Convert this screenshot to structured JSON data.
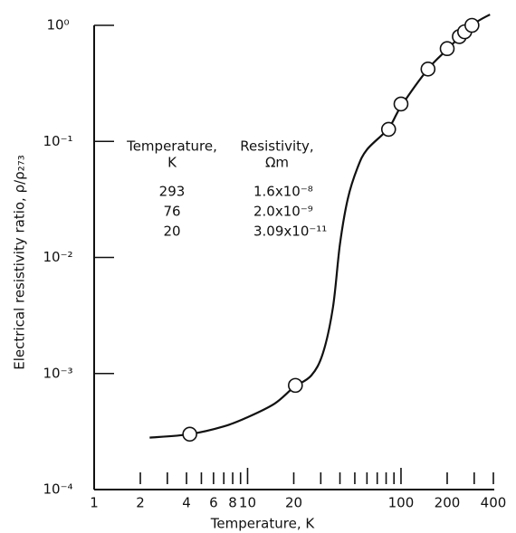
{
  "chart_data": {
    "type": "scatter",
    "x_label": "Temperature, K",
    "y_label": "Electrical resistivity ratio, ρ/ρ₂₇₃",
    "x_scale": "log",
    "y_scale": "log",
    "xlim": [
      1,
      400
    ],
    "ylim": [
      0.0001,
      1
    ],
    "xticks": [
      1,
      2,
      {
        "value": 3,
        "label": null
      },
      4,
      {
        "value": 5,
        "label": null
      },
      6,
      {
        "value": 7,
        "label": null
      },
      8,
      {
        "value": 9,
        "label": null
      },
      10,
      20,
      {
        "value": 30,
        "label": null
      },
      {
        "value": 40,
        "label": null
      },
      {
        "value": 50,
        "label": null
      },
      {
        "value": 60,
        "label": null
      },
      {
        "value": 70,
        "label": null
      },
      {
        "value": 80,
        "label": null
      },
      {
        "value": 90,
        "label": null
      },
      100,
      200,
      {
        "value": 300,
        "label": null
      },
      400
    ],
    "yticks": [
      {
        "value": 0.0001,
        "label": "10⁻⁴"
      },
      {
        "value": 0.001,
        "label": "10⁻³"
      },
      {
        "value": 0.01,
        "label": "10⁻²"
      },
      {
        "value": 0.1,
        "label": "10⁻¹"
      },
      {
        "value": 1,
        "label": "10⁰"
      }
    ],
    "color": "#111111",
    "points": {
      "x": [
        4.2,
        20.5,
        83,
        100,
        150,
        200,
        240,
        260,
        290
      ],
      "y": [
        0.0003,
        0.00079,
        0.127,
        0.21,
        0.42,
        0.63,
        0.8,
        0.88,
        1.0
      ]
    },
    "curve": {
      "x": [
        2.3,
        4.2,
        7,
        10,
        15,
        20,
        26,
        31,
        36,
        40,
        45,
        52,
        60,
        83,
        100,
        150,
        200,
        290,
        380
      ],
      "y": [
        0.00028,
        0.0003,
        0.00035,
        0.00042,
        0.00055,
        0.00076,
        0.00096,
        0.0015,
        0.0037,
        0.013,
        0.032,
        0.059,
        0.085,
        0.13,
        0.2,
        0.42,
        0.62,
        1.0,
        1.24
      ]
    },
    "table": {
      "columns": [
        [
          "Temperature,",
          "K"
        ],
        [
          "Resistivity,",
          "Ωm"
        ]
      ],
      "rows": [
        [
          "293",
          "1.6x10⁻⁸"
        ],
        [
          "76",
          "2.0x10⁻⁹"
        ],
        [
          "20",
          "3.09x10⁻¹¹"
        ]
      ]
    }
  }
}
